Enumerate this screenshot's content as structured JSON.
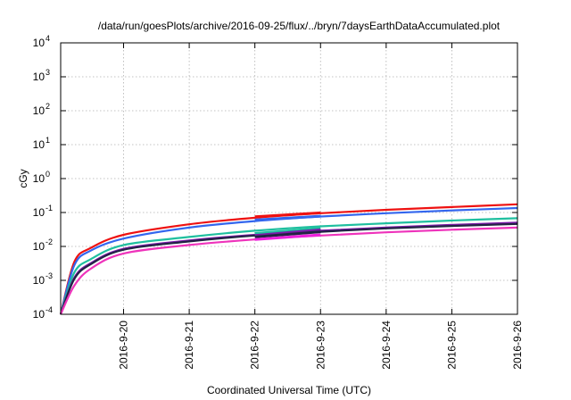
{
  "chart_data": {
    "type": "line",
    "title": "/data/run/goesPlots/archive/2016-09-25/flux/../bryn/7daysEarthDataAccumulated.plot",
    "xlabel": "Coordinated Universal Time (UTC)",
    "ylabel": "cGy",
    "y_scale": "log",
    "ylim": [
      0.0001,
      10000
    ],
    "y_ticks": [
      {
        "value": 0.0001,
        "mantissa": "10",
        "exp": "-4"
      },
      {
        "value": 0.001,
        "mantissa": "10",
        "exp": "-3"
      },
      {
        "value": 0.01,
        "mantissa": "10",
        "exp": "-2"
      },
      {
        "value": 0.1,
        "mantissa": "10",
        "exp": "-1"
      },
      {
        "value": 1,
        "mantissa": "10",
        "exp": "0"
      },
      {
        "value": 10,
        "mantissa": "10",
        "exp": "1"
      },
      {
        "value": 100,
        "mantissa": "10",
        "exp": "2"
      },
      {
        "value": 1000,
        "mantissa": "10",
        "exp": "3"
      },
      {
        "value": 10000,
        "mantissa": "10",
        "exp": "4"
      }
    ],
    "xlim": [
      "2016-09-19T01:00",
      "2016-09-26T00:00"
    ],
    "x_ticks": [
      {
        "value": "2016-09-20T00:00",
        "label": "2016-9-20"
      },
      {
        "value": "2016-09-21T00:00",
        "label": "2016-9-21"
      },
      {
        "value": "2016-09-22T00:00",
        "label": "2016-9-22"
      },
      {
        "value": "2016-09-23T00:00",
        "label": "2016-9-23"
      },
      {
        "value": "2016-09-24T00:00",
        "label": "2016-9-24"
      },
      {
        "value": "2016-09-25T00:00",
        "label": "2016-9-25"
      },
      {
        "value": "2016-09-26T00:00",
        "label": "2016-9-26"
      }
    ],
    "grid": true,
    "x": [
      "2016-09-19T01:00",
      "2016-09-19T06:00",
      "2016-09-19T12:00",
      "2016-09-20T00:00",
      "2016-09-21T00:00",
      "2016-09-22T00:00",
      "2016-09-23T00:00",
      "2016-09-24T00:00",
      "2016-09-25T00:00",
      "2016-09-26T00:00"
    ],
    "series": [
      {
        "color": "#ee1111",
        "values": [
          0.0001,
          0.0035,
          0.009,
          0.022,
          0.045,
          0.07,
          0.095,
          0.12,
          0.145,
          0.175
        ]
      },
      {
        "color": "#3366ee",
        "values": [
          0.0001,
          0.0028,
          0.0075,
          0.017,
          0.036,
          0.056,
          0.076,
          0.095,
          0.115,
          0.135
        ]
      },
      {
        "color": "#1fbf9f",
        "values": [
          0.0001,
          0.0017,
          0.0042,
          0.011,
          0.019,
          0.029,
          0.039,
          0.048,
          0.058,
          0.068
        ]
      },
      {
        "color": "#7a1aa8",
        "values": [
          0.0001,
          0.0012,
          0.0032,
          0.0085,
          0.015,
          0.022,
          0.029,
          0.036,
          0.043,
          0.05
        ]
      },
      {
        "color": "#222244",
        "values": [
          0.0001,
          0.0011,
          0.003,
          0.008,
          0.014,
          0.021,
          0.027,
          0.034,
          0.04,
          0.046
        ]
      },
      {
        "color": "#ee33bb",
        "values": [
          0.0001,
          0.0007,
          0.0022,
          0.0062,
          0.011,
          0.016,
          0.021,
          0.026,
          0.031,
          0.036
        ]
      }
    ],
    "overlap_segments": [
      {
        "color": "#ee1111",
        "x": [
          "2016-09-22T00:00",
          "2016-09-23T00:00"
        ],
        "values": [
          0.075,
          0.098
        ]
      },
      {
        "color": "#3366ee",
        "x": [
          "2016-09-22T00:00",
          "2016-09-23T00:00"
        ],
        "values": [
          0.06,
          0.078
        ]
      },
      {
        "color": "#1fbf9f",
        "x": [
          "2016-09-22T00:00",
          "2016-09-23T00:00"
        ],
        "values": [
          0.024,
          0.034
        ]
      },
      {
        "color": "#7a1aa8",
        "x": [
          "2016-09-22T00:00",
          "2016-09-23T00:00"
        ],
        "values": [
          0.021,
          0.031
        ]
      },
      {
        "color": "#222244",
        "x": [
          "2016-09-22T00:00",
          "2016-09-23T00:00"
        ],
        "values": [
          0.019,
          0.027
        ]
      },
      {
        "color": "#ee22dd",
        "x": [
          "2016-09-22T00:00",
          "2016-09-23T00:00"
        ],
        "values": [
          0.016,
          0.022
        ]
      }
    ]
  }
}
